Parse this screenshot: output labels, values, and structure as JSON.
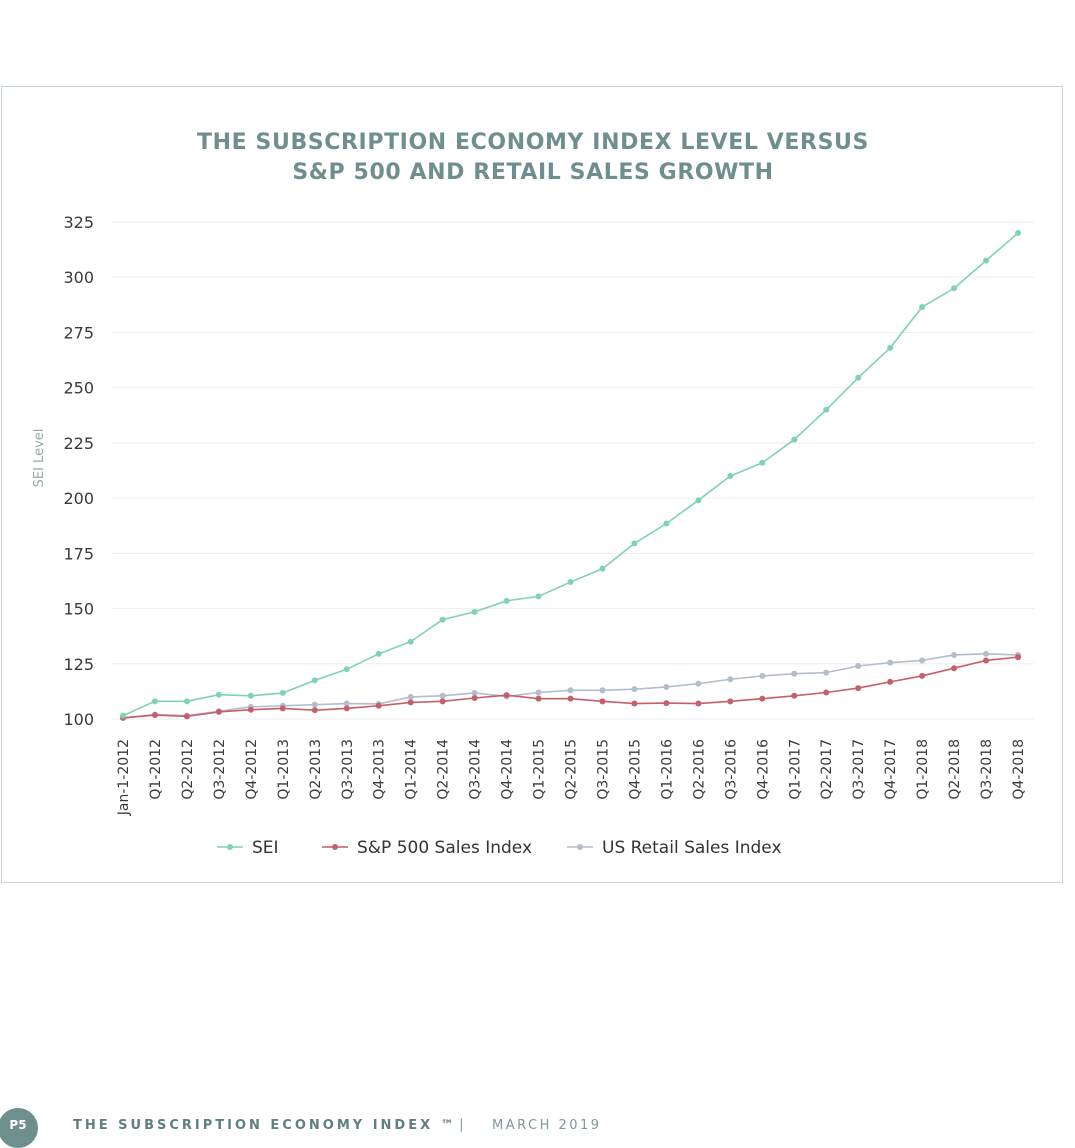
{
  "colors": {
    "sei": "#7fd3b0",
    "sp500": "#c65f69",
    "retail": "#b3bdcb",
    "title": "#6f8f8f",
    "frame": "#c9d7d4"
  },
  "chart_data": {
    "type": "line",
    "title_lines": [
      "THE SUBSCRIPTION ECONOMY INDEX LEVEL VERSUS",
      "S&P 500 AND RETAIL SALES GROWTH"
    ],
    "xlabel": "",
    "ylabel": "SEI Level",
    "ylim": [
      100,
      325
    ],
    "yticks": [
      100,
      125,
      150,
      175,
      200,
      225,
      250,
      275,
      300,
      325
    ],
    "grid": "horizontal",
    "legend_position": "bottom-center",
    "categories": [
      "Jan-1-2012",
      "Q1-2012",
      "Q2-2012",
      "Q3-2012",
      "Q4-2012",
      "Q1-2013",
      "Q2-2013",
      "Q3-2013",
      "Q4-2013",
      "Q1-2014",
      "Q2-2014",
      "Q3-2014",
      "Q4-2014",
      "Q1-2015",
      "Q2-2015",
      "Q3-2015",
      "Q4-2015",
      "Q1-2016",
      "Q2-2016",
      "Q3-2016",
      "Q4-2016",
      "Q1-2017",
      "Q2-2017",
      "Q3-2017",
      "Q4-2017",
      "Q1-2018",
      "Q2-2018",
      "Q3-2018",
      "Q4-2018"
    ],
    "series": [
      {
        "name": "SEI",
        "color": "#7fd3b0",
        "values": [
          101.5,
          108,
          108,
          111,
          110.5,
          111.8,
          117.5,
          122.5,
          129.5,
          135,
          145,
          148.5,
          153.5,
          155.5,
          162,
          168,
          179.5,
          188.5,
          199,
          210,
          216,
          226.5,
          240,
          254.5,
          268,
          286.5,
          295,
          307.5,
          320
        ]
      },
      {
        "name": "S&P 500 Sales Index",
        "color": "#c65f69",
        "values": [
          100.5,
          101.8,
          101.2,
          103.2,
          104.2,
          104.8,
          104,
          104.8,
          106,
          107.5,
          108,
          109.5,
          110.8,
          109.2,
          109.2,
          108,
          107,
          107.2,
          107,
          108,
          109.2,
          110.5,
          112,
          114,
          116.8,
          119.5,
          123,
          126.5,
          128
        ]
      },
      {
        "name": "US Retail Sales Index",
        "color": "#b3bdcb",
        "values": [
          100.5,
          102,
          101.5,
          103.5,
          105.5,
          106,
          106.5,
          107,
          106.8,
          110,
          110.5,
          111.8,
          110.2,
          112,
          113,
          113,
          113.5,
          114.5,
          116,
          118,
          119.5,
          120.5,
          121,
          124,
          125.5,
          126.5,
          129,
          129.5,
          129
        ]
      }
    ]
  },
  "footer": {
    "page": "P5",
    "title": "THE SUBSCRIPTION ECONOMY INDEX ™",
    "separator": "|",
    "date": "MARCH 2019"
  }
}
